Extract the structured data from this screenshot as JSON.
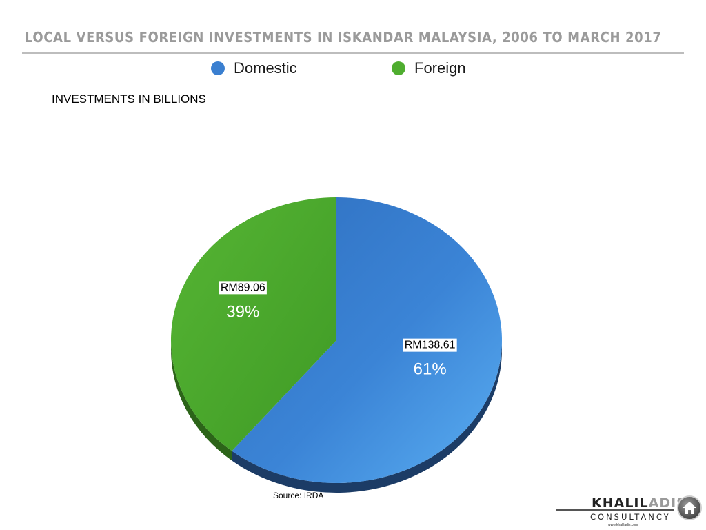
{
  "header": {
    "title": "LOCAL VERSUS FOREIGN INVESTMENTS IN ISKANDAR MALAYSIA, 2006 TO MARCH 2017"
  },
  "chart_data": {
    "type": "pie",
    "subtitle": "INVESTMENTS IN BILLIONS",
    "legend_position": "top",
    "categories": [
      "Domestic",
      "Foreign"
    ],
    "values": [
      138.61,
      89.06
    ],
    "value_labels": [
      "RM138.61",
      "RM89.06"
    ],
    "percent_labels": [
      "61%",
      "39%"
    ],
    "percent": [
      61,
      39
    ],
    "colors": [
      "#3a7fd0",
      "#4fad2f"
    ],
    "source": "Source: IRDA"
  },
  "branding": {
    "logo_part1": "KHALIL",
    "logo_part2": "ADIS",
    "logo_sub": "CONSULTANCY",
    "logo_url": "www.khaliladis.com",
    "logo_icon": "house-icon"
  }
}
